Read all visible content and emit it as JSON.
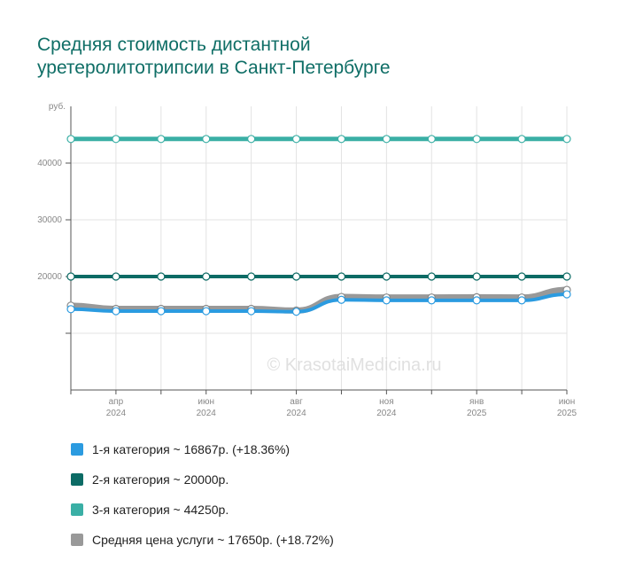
{
  "title": {
    "line1": "Средняя стоимость дистантной",
    "line2": "уретеролитотрипсии в Санкт-Петербурге"
  },
  "watermark": "© KrasotaiMedicina.ru",
  "chart_data": {
    "type": "line",
    "ylabel": "руб.",
    "ylim": [
      0,
      50000
    ],
    "yticks": [
      10000,
      20000,
      30000,
      40000
    ],
    "ytick_labels": [
      "",
      "20000",
      "30000",
      "40000"
    ],
    "x_count": 12,
    "x_tick_labels": [
      {
        "index": 1,
        "month": "апр",
        "year": "2024"
      },
      {
        "index": 3,
        "month": "июн",
        "year": "2024"
      },
      {
        "index": 5,
        "month": "авг",
        "year": "2024"
      },
      {
        "index": 7,
        "month": "ноя",
        "year": "2024"
      },
      {
        "index": 9,
        "month": "янв",
        "year": "2025"
      },
      {
        "index": 11,
        "month": "июн",
        "year": "2025"
      }
    ],
    "grid": true,
    "legend_position": "bottom",
    "series": [
      {
        "name": "Средняя цена услуги ~ 17650р. (+18.72%)",
        "color": "#999999",
        "width": 7,
        "values": [
          14870,
          14300,
          14300,
          14300,
          14300,
          14000,
          16400,
          16300,
          16300,
          16350,
          16300,
          17650
        ]
      },
      {
        "name": "1-я категория ~ 16867р. (+18.36%)",
        "color": "#2b9be0",
        "width": 4,
        "values": [
          14250,
          13900,
          13900,
          13900,
          13900,
          13800,
          15900,
          15800,
          15800,
          15800,
          15800,
          16867
        ]
      },
      {
        "name": "2-я категория ~ 20000р.",
        "color": "#0c6b65",
        "width": 4,
        "values": [
          20000,
          20000,
          20000,
          20000,
          20000,
          20000,
          20000,
          20000,
          20000,
          20000,
          20000,
          20000
        ]
      },
      {
        "name": "3-я категория ~ 44250р.",
        "color": "#3aafa5",
        "width": 5,
        "values": [
          44250,
          44250,
          44250,
          44250,
          44250,
          44250,
          44250,
          44250,
          44250,
          44250,
          44250,
          44250
        ]
      }
    ]
  },
  "legend": [
    {
      "label": "1-я категория ~ 16867р. (+18.36%)",
      "color": "#2b9be0"
    },
    {
      "label": "2-я категория ~ 20000р.",
      "color": "#0c6b65"
    },
    {
      "label": "3-я категория ~ 44250р.",
      "color": "#3aafa5"
    },
    {
      "label": "Средняя цена услуги ~ 17650р. (+18.72%)",
      "color": "#999999"
    }
  ]
}
